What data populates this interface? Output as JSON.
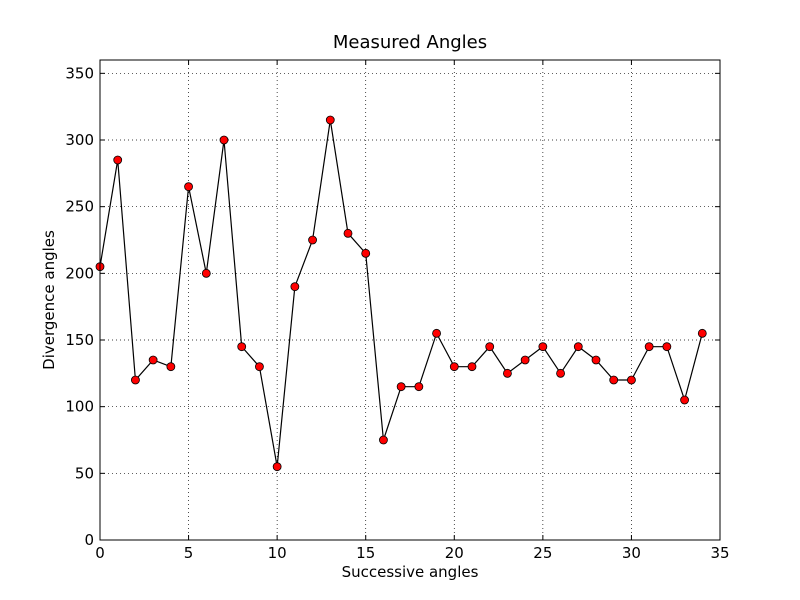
{
  "chart_data": {
    "type": "line",
    "title": "Measured Angles",
    "xlabel": "Successive angles",
    "ylabel": "Divergence angles",
    "xlim": [
      0,
      35
    ],
    "ylim": [
      0,
      360
    ],
    "xticks": [
      0,
      5,
      10,
      15,
      20,
      25,
      30,
      35
    ],
    "yticks": [
      0,
      50,
      100,
      150,
      200,
      250,
      300,
      350
    ],
    "grid": true,
    "x": [
      0,
      1,
      2,
      3,
      4,
      5,
      6,
      7,
      8,
      9,
      10,
      11,
      12,
      13,
      14,
      15,
      16,
      17,
      18,
      19,
      20,
      21,
      22,
      23,
      24,
      25,
      26,
      27,
      28,
      29,
      30,
      31,
      32,
      33,
      34
    ],
    "series": [
      {
        "values": [
          205,
          285,
          120,
          135,
          130,
          265,
          200,
          300,
          145,
          130,
          55,
          190,
          225,
          315,
          230,
          215,
          75,
          115,
          115,
          155,
          130,
          130,
          145,
          125,
          135,
          145,
          125,
          145,
          135,
          120,
          120,
          145,
          145,
          105,
          155
        ]
      }
    ],
    "colors": {
      "line": "#000000",
      "marker": "#ff0000",
      "grid": "#000000"
    }
  }
}
